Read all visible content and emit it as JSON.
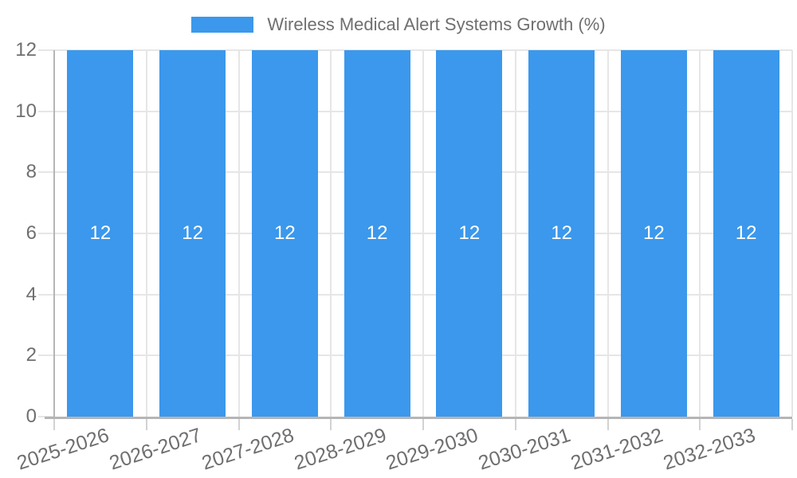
{
  "chart": {
    "legend": {
      "label": "Wireless Medical Alert Systems Growth (%)"
    }
  },
  "chart_data": {
    "type": "bar",
    "title": "Wireless Medical Alert Systems Growth (%)",
    "categories": [
      "2025-2026",
      "2026-2027",
      "2027-2028",
      "2028-2029",
      "2029-2030",
      "2030-2031",
      "2031-2032",
      "2032-2033"
    ],
    "series": [
      {
        "name": "Wireless Medical Alert Systems Growth (%)",
        "values": [
          12,
          12,
          12,
          12,
          12,
          12,
          12,
          12
        ]
      }
    ],
    "bar_value_labels": [
      "12",
      "12",
      "12",
      "12",
      "12",
      "12",
      "12",
      "12"
    ],
    "xlabel": "",
    "ylabel": "",
    "ylim": [
      0,
      12
    ],
    "yticks": [
      0,
      2,
      4,
      6,
      8,
      10,
      12
    ],
    "grid": true,
    "legend_position": "top",
    "x_tick_label_rotation_deg": -18,
    "colors": {
      "bar": "#3B98EC",
      "grid": "#e6e6e6",
      "tick": "#d2d2d2",
      "axis": "#b5b5b5",
      "axis_label": "#6f6f6f",
      "bar_label": "#ffffff",
      "legend_text": "#6f6f6f"
    }
  }
}
